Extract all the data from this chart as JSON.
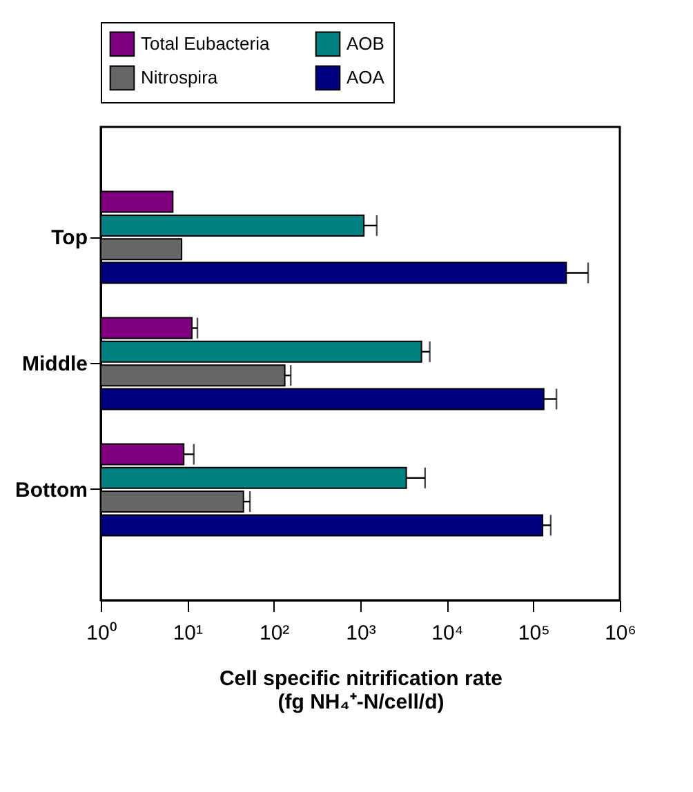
{
  "chart_data": {
    "type": "bar",
    "orientation": "horizontal",
    "log": "x",
    "xlabel": "Cell specific nitrification rate\n(fg NH₄⁺-N/cell/d)",
    "categories": [
      "Top",
      "Middle",
      "Bottom"
    ],
    "series": [
      {
        "name": "Total Eubacteria",
        "color": "#800080",
        "values": [
          6.8,
          11.3,
          9.1
        ],
        "errors": [
          null,
          [
            11.3,
            13.1
          ],
          [
            9.1,
            11.9
          ]
        ]
      },
      {
        "name": "AOB",
        "color": "#008080",
        "values": [
          1100,
          5100,
          3400
        ],
        "errors": [
          [
            1100,
            1550
          ],
          [
            5100,
            6350
          ],
          [
            3400,
            5600
          ]
        ]
      },
      {
        "name": "Nitrospira",
        "color": "#666666",
        "values": [
          8.6,
          134,
          44.6
        ],
        "errors": [
          null,
          [
            134,
            157
          ],
          [
            44.6,
            53
          ]
        ]
      },
      {
        "name": "AOA",
        "color": "#000080",
        "values": [
          240000,
          132000,
          128000
        ],
        "errors": [
          [
            240000,
            430000
          ],
          [
            132000,
            185000
          ],
          [
            128000,
            159000
          ]
        ]
      }
    ],
    "xlim": [
      1,
      1000000
    ],
    "xticks": [
      {
        "value": 1,
        "label": "10⁰"
      },
      {
        "value": 10,
        "label": "10¹"
      },
      {
        "value": 100,
        "label": "10²"
      },
      {
        "value": 1000,
        "label": "10³"
      },
      {
        "value": 10000,
        "label": "10⁴"
      },
      {
        "value": 100000,
        "label": "10⁵"
      },
      {
        "value": 1000000,
        "label": "10⁶"
      }
    ],
    "grid": false,
    "legend": "top"
  }
}
